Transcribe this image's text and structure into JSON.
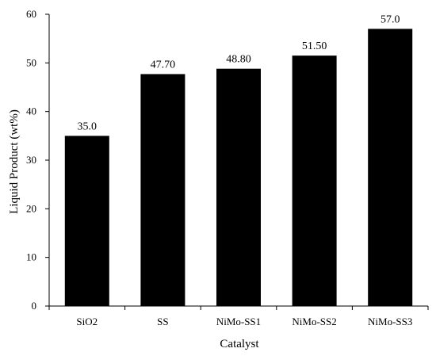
{
  "chart_data": {
    "type": "bar",
    "title": "",
    "xlabel": "Catalyst",
    "ylabel": "Liquid Product (wt%)",
    "categories": [
      "SiO2",
      "SS",
      "NiMo-SS1",
      "NiMo-SS2",
      "NiMo-SS3"
    ],
    "values": [
      35.0,
      47.7,
      48.8,
      51.5,
      57.0
    ],
    "data_labels": [
      "35.0",
      "47.70",
      "48.80",
      "51.50",
      "57.0"
    ],
    "ylim": [
      0,
      60
    ],
    "yticks": [
      "0",
      "10",
      "20",
      "30",
      "40",
      "50",
      "60"
    ],
    "grid": false,
    "legend": "none",
    "bar_color": "#000000"
  }
}
